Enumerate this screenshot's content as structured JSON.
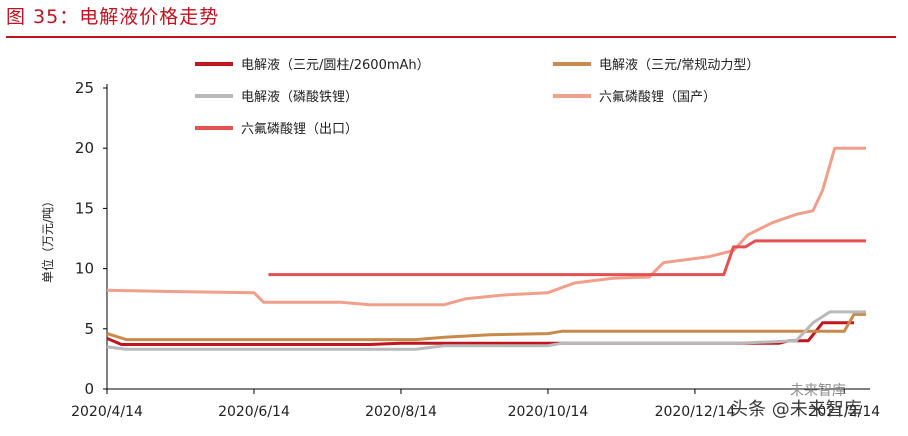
{
  "figure_title": "图 35：电解液价格走势",
  "watermark": "头条 @未来智库",
  "watermark_top": "未来智库",
  "chart_data": {
    "type": "line",
    "title": "",
    "xlabel": "",
    "ylabel": "单位（万元/吨）",
    "ylim": [
      0,
      25
    ],
    "yticks": [
      0,
      5,
      10,
      15,
      20,
      25
    ],
    "xlim": [
      "2020-04-14",
      "2021-02-23"
    ],
    "xtick_labels": [
      "2020/4/14",
      "2020/6/14",
      "2020/8/14",
      "2020/10/14",
      "2020/12/14",
      "2021/2/14"
    ],
    "grid": false,
    "legend_position": "top",
    "series": [
      {
        "name": "电解液（三元/圆柱/2600mAh）",
        "color": "#c0161e",
        "points": [
          [
            "2020-04-14",
            4.2
          ],
          [
            "2020-04-20",
            3.7
          ],
          [
            "2020-05-01",
            3.7
          ],
          [
            "2020-06-01",
            3.7
          ],
          [
            "2020-08-01",
            3.7
          ],
          [
            "2020-08-14",
            3.8
          ],
          [
            "2020-09-01",
            3.8
          ],
          [
            "2020-10-14",
            3.8
          ],
          [
            "2020-12-01",
            3.8
          ],
          [
            "2021-01-01",
            3.8
          ],
          [
            "2021-01-18",
            3.8
          ],
          [
            "2021-01-22",
            4.0
          ],
          [
            "2021-01-30",
            4.0
          ],
          [
            "2021-02-05",
            5.5
          ],
          [
            "2021-02-15",
            5.5
          ],
          [
            "2021-02-18",
            5.5
          ]
        ]
      },
      {
        "name": "电解液（三元/常规动力型）",
        "color": "#c88a4a",
        "points": [
          [
            "2020-04-14",
            4.6
          ],
          [
            "2020-04-22",
            4.1
          ],
          [
            "2020-06-01",
            4.1
          ],
          [
            "2020-08-01",
            4.1
          ],
          [
            "2020-08-20",
            4.1
          ],
          [
            "2020-09-01",
            4.3
          ],
          [
            "2020-09-20",
            4.5
          ],
          [
            "2020-10-14",
            4.6
          ],
          [
            "2020-10-20",
            4.8
          ],
          [
            "2020-12-01",
            4.8
          ],
          [
            "2021-01-01",
            4.8
          ],
          [
            "2021-02-01",
            4.8
          ],
          [
            "2021-02-14",
            4.8
          ],
          [
            "2021-02-18",
            6.2
          ],
          [
            "2021-02-23",
            6.2
          ]
        ]
      },
      {
        "name": "电解液（磷酸铁锂）",
        "color": "#b9b9b9",
        "points": [
          [
            "2020-04-14",
            3.5
          ],
          [
            "2020-04-22",
            3.3
          ],
          [
            "2020-06-01",
            3.3
          ],
          [
            "2020-08-01",
            3.3
          ],
          [
            "2020-08-20",
            3.3
          ],
          [
            "2020-09-01",
            3.6
          ],
          [
            "2020-09-20",
            3.6
          ],
          [
            "2020-10-14",
            3.6
          ],
          [
            "2020-10-20",
            3.8
          ],
          [
            "2020-12-01",
            3.8
          ],
          [
            "2021-01-01",
            3.8
          ],
          [
            "2021-01-25",
            4.0
          ],
          [
            "2021-02-01",
            5.5
          ],
          [
            "2021-02-08",
            6.4
          ],
          [
            "2021-02-23",
            6.4
          ]
        ]
      },
      {
        "name": "六氟磷酸锂（国产）",
        "color": "#f0a08a",
        "points": [
          [
            "2020-04-14",
            8.2
          ],
          [
            "2020-05-10",
            8.1
          ],
          [
            "2020-06-14",
            8.0
          ],
          [
            "2020-06-18",
            7.2
          ],
          [
            "2020-07-20",
            7.2
          ],
          [
            "2020-08-01",
            7.0
          ],
          [
            "2020-08-14",
            7.0
          ],
          [
            "2020-09-01",
            7.0
          ],
          [
            "2020-09-10",
            7.5
          ],
          [
            "2020-09-25",
            7.8
          ],
          [
            "2020-10-14",
            8.0
          ],
          [
            "2020-10-25",
            8.8
          ],
          [
            "2020-11-10",
            9.2
          ],
          [
            "2020-11-25",
            9.3
          ],
          [
            "2020-12-01",
            10.5
          ],
          [
            "2020-12-20",
            11.0
          ],
          [
            "2020-12-30",
            11.5
          ],
          [
            "2021-01-05",
            12.8
          ],
          [
            "2021-01-15",
            13.8
          ],
          [
            "2021-01-25",
            14.5
          ],
          [
            "2021-02-01",
            14.8
          ],
          [
            "2021-02-05",
            16.5
          ],
          [
            "2021-02-10",
            20.0
          ],
          [
            "2021-02-23",
            20.0
          ]
        ]
      },
      {
        "name": "六氟磷酸锂（出口）",
        "color": "#e55050",
        "points": [
          [
            "2020-06-20",
            9.5
          ],
          [
            "2020-12-01",
            9.5
          ],
          [
            "2020-12-26",
            9.5
          ],
          [
            "2020-12-30",
            11.8
          ],
          [
            "2021-01-04",
            11.8
          ],
          [
            "2021-01-08",
            12.3
          ],
          [
            "2021-02-23",
            12.3
          ]
        ]
      }
    ]
  }
}
